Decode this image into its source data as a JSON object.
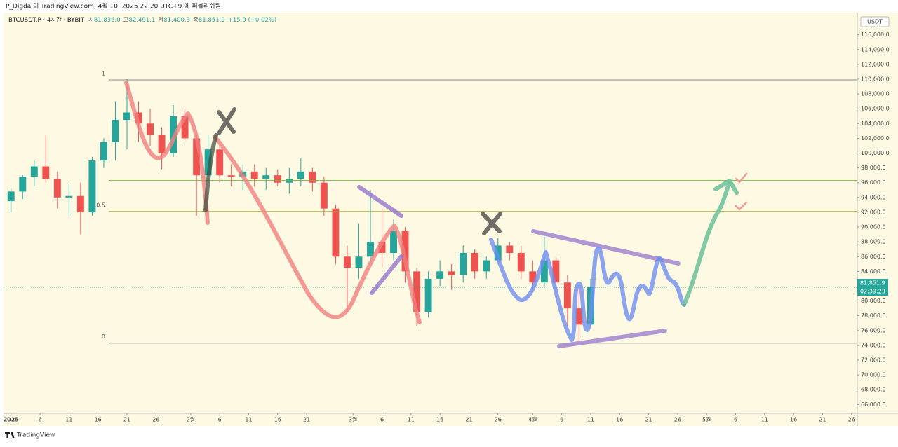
{
  "header": {
    "text": "P_Digda 이 TradingView.com, 4월 10, 2025 22:20 UTC+9 에 퍼블리쉬됨"
  },
  "footer": {
    "brand": "TradingView"
  },
  "chart_data": {
    "type": "candlestick",
    "legend": {
      "symbol": "BTCUSDT.P · 4시간 · BYBIT",
      "items": [
        {
          "label": "시",
          "value": "81,836.0"
        },
        {
          "label": "고",
          "value": "82,491.1"
        },
        {
          "label": "저",
          "value": "81,400.3"
        },
        {
          "label": "종",
          "value": "81,851.9"
        }
      ],
      "change": "+15.9 (+0.02%)"
    },
    "currency": "USDT",
    "colors": {
      "up": "#26a69a",
      "down": "#ef5350"
    },
    "x": [
      0,
      2,
      4,
      6,
      8,
      10,
      12,
      14,
      16,
      18,
      20,
      22,
      24,
      26,
      28,
      30,
      32,
      34,
      36,
      38,
      40,
      42,
      44,
      46,
      48,
      50,
      52,
      54,
      56,
      58,
      60,
      62,
      64,
      66,
      68,
      70,
      72,
      74,
      76,
      78,
      80,
      82,
      84,
      86,
      88,
      90,
      92,
      94,
      96,
      98,
      100
    ],
    "open": [
      93500,
      94800,
      96800,
      98200,
      96500,
      94000,
      94200,
      92000,
      99000,
      101500,
      104500,
      105500,
      104000,
      102500,
      100000,
      105000,
      102000,
      97000,
      100500,
      97000,
      96800,
      97500,
      96500,
      97000,
      96000,
      96500,
      97500,
      96000,
      92500,
      86000,
      84500,
      86000,
      88000,
      86500,
      89500,
      84000,
      78500,
      83000,
      84000,
      83500,
      86500,
      84000,
      85500,
      87500,
      86500,
      84000,
      82500,
      85500,
      82500,
      79000,
      76800
    ],
    "high": [
      95200,
      97000,
      99000,
      102500,
      97500,
      95800,
      96000,
      99500,
      102000,
      107000,
      110000,
      107000,
      106000,
      103500,
      106500,
      106000,
      102500,
      102500,
      101000,
      98500,
      98500,
      98500,
      98000,
      97800,
      98000,
      99300,
      98000,
      96800,
      93000,
      87500,
      90500,
      95000,
      92500,
      91000,
      90000,
      84500,
      84000,
      85500,
      85000,
      87500,
      87000,
      86000,
      88500,
      88000,
      87500,
      85500,
      88700,
      86000,
      83500,
      82000,
      83000
    ],
    "low": [
      92000,
      93800,
      95500,
      96000,
      92500,
      91500,
      89000,
      91500,
      98000,
      99000,
      100500,
      101500,
      101000,
      97800,
      99500,
      101500,
      91500,
      96000,
      96000,
      95500,
      95000,
      95500,
      95000,
      95500,
      94500,
      95500,
      94800,
      91500,
      85000,
      78500,
      83000,
      85000,
      84500,
      85500,
      82500,
      76600,
      77800,
      82000,
      81500,
      82500,
      83000,
      83000,
      85000,
      85500,
      83000,
      81500,
      82000,
      80500,
      76500,
      74500,
      76500
    ],
    "close": [
      94800,
      96800,
      98200,
      96500,
      94000,
      94200,
      92000,
      99000,
      101500,
      104500,
      105500,
      104000,
      102500,
      100000,
      105000,
      102000,
      97000,
      100500,
      97000,
      96800,
      97500,
      96500,
      97000,
      96000,
      96500,
      97500,
      96000,
      92500,
      86000,
      84500,
      86000,
      88000,
      86500,
      89500,
      84000,
      78500,
      83000,
      84000,
      83500,
      86500,
      84000,
      85500,
      87500,
      86500,
      84000,
      82500,
      85500,
      82500,
      79000,
      76800,
      81851.9
    ],
    "xlim": [
      -1.3,
      146
    ],
    "xticks": [
      {
        "value": 0,
        "label": "2025"
      },
      {
        "value": 5,
        "label": "6"
      },
      {
        "value": 10,
        "label": "11"
      },
      {
        "value": 15,
        "label": "16"
      },
      {
        "value": 20,
        "label": "21"
      },
      {
        "value": 25,
        "label": "26"
      },
      {
        "value": 31,
        "label": "2월"
      },
      {
        "value": 36,
        "label": "6"
      },
      {
        "value": 41,
        "label": "11"
      },
      {
        "value": 46,
        "label": "16"
      },
      {
        "value": 51,
        "label": "21"
      },
      {
        "value": 59,
        "label": "3월"
      },
      {
        "value": 64,
        "label": "6"
      },
      {
        "value": 69,
        "label": "11"
      },
      {
        "value": 74,
        "label": "16"
      },
      {
        "value": 79,
        "label": "21"
      },
      {
        "value": 84,
        "label": "26"
      },
      {
        "value": 90,
        "label": "4월"
      },
      {
        "value": 95,
        "label": "6"
      },
      {
        "value": 100,
        "label": "11"
      },
      {
        "value": 105,
        "label": "16"
      },
      {
        "value": 110,
        "label": "21"
      },
      {
        "value": 115,
        "label": "26"
      },
      {
        "value": 120,
        "label": "5월"
      },
      {
        "value": 125,
        "label": "6"
      },
      {
        "value": 130,
        "label": "11"
      },
      {
        "value": 135,
        "label": "16"
      },
      {
        "value": 140,
        "label": "21"
      },
      {
        "value": 145,
        "label": "26"
      }
    ],
    "ylim": [
      64800,
      119000
    ],
    "yticks": [
      {
        "value": 66000,
        "label": "66,000.0"
      },
      {
        "value": 68000,
        "label": "68,000.0"
      },
      {
        "value": 70000,
        "label": "70,000.0"
      },
      {
        "value": 72000,
        "label": "72,000.0"
      },
      {
        "value": 74000,
        "label": "74,000.0"
      },
      {
        "value": 76000,
        "label": "76,000.0"
      },
      {
        "value": 78000,
        "label": "78,000.0"
      },
      {
        "value": 80000,
        "label": "80,000.0"
      },
      {
        "value": 82000,
        "label": "82,000.0"
      },
      {
        "value": 84000,
        "label": "84,000.0"
      },
      {
        "value": 86000,
        "label": "86,000.0"
      },
      {
        "value": 88000,
        "label": "88,000.0"
      },
      {
        "value": 90000,
        "label": "90,000.0"
      },
      {
        "value": 92000,
        "label": "92,000.0"
      },
      {
        "value": 94000,
        "label": "94,000.0"
      },
      {
        "value": 96000,
        "label": "96,000.0"
      },
      {
        "value": 98000,
        "label": "98,000.0"
      },
      {
        "value": 100000,
        "label": "100,000.0"
      },
      {
        "value": 102000,
        "label": "102,000.0"
      },
      {
        "value": 104000,
        "label": "104,000.0"
      },
      {
        "value": 106000,
        "label": "106,000.0"
      },
      {
        "value": 108000,
        "label": "108,000.0"
      },
      {
        "value": 110000,
        "label": "110,000.0"
      },
      {
        "value": 112000,
        "label": "112,000.0"
      },
      {
        "value": 114000,
        "label": "114,000.0"
      },
      {
        "value": 116000,
        "label": "116,000.0"
      }
    ],
    "fib_levels": [
      {
        "value": 109900,
        "label": "1",
        "color": "#8a8a8a"
      },
      {
        "value": 96300,
        "label": null,
        "color": "#7cb342"
      },
      {
        "value": 92100,
        "label": "0.5",
        "color": "#9e9d24"
      },
      {
        "value": 74300,
        "label": "0",
        "color": "#777777"
      }
    ],
    "last_price": {
      "value": 81851.9,
      "label": "81,851.9",
      "countdown": "02:39:23",
      "color": "#26a69a"
    }
  }
}
